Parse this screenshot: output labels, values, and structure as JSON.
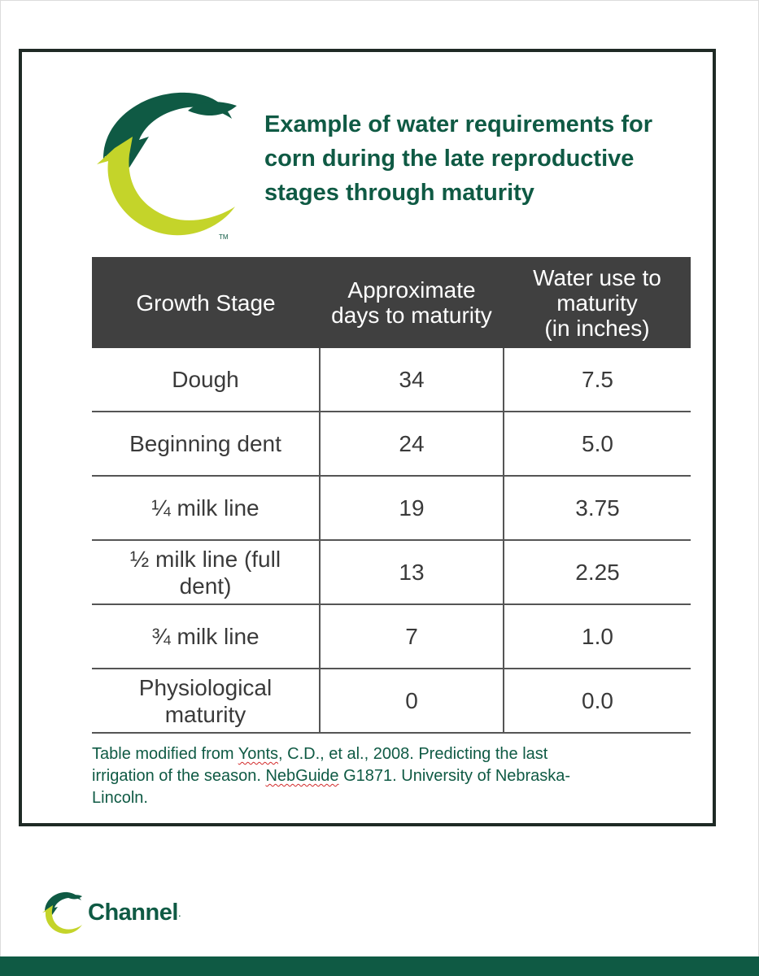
{
  "header": {
    "title_line1": "Example of water requirements for",
    "title_line2": "corn during the late reproductive",
    "title_line3": "stages through maturity"
  },
  "logo": {
    "icon": "channel-arrow-logo-icon",
    "tm": "TM",
    "colors": {
      "dark_green": "#0f5a44",
      "lime": "#c4d42a"
    }
  },
  "table": {
    "headers": [
      [
        "Growth Stage"
      ],
      [
        "Approximate",
        "days to maturity"
      ],
      [
        "Water use to",
        "maturity",
        "(in inches)"
      ]
    ],
    "rows": [
      {
        "stage": [
          "Dough"
        ],
        "days": "34",
        "water": "7.5"
      },
      {
        "stage": [
          "Beginning dent"
        ],
        "days": "24",
        "water": "5.0"
      },
      {
        "stage": [
          "¼ milk line"
        ],
        "days": "19",
        "water": "3.75"
      },
      {
        "stage": [
          "½ milk line (full",
          "dent)"
        ],
        "days": "13",
        "water": "2.25"
      },
      {
        "stage": [
          "¾ milk line"
        ],
        "days": "7",
        "water": "1.0"
      },
      {
        "stage": [
          "Physiological",
          "maturity"
        ],
        "days": "0",
        "water": "0.0"
      }
    ]
  },
  "footnote": {
    "part1": "Table modified from ",
    "author": "Yonts",
    "part2": ", C.D., et al., 2008. Predicting the last",
    "part3": "irrigation of the season. ",
    "guide": "NebGuide",
    "part4": " G1871. University of Nebraska-",
    "part5": "Lincoln."
  },
  "brand": {
    "name": "Channel",
    "dot": "."
  },
  "colors": {
    "accent": "#0f5a44",
    "header_bg": "#404040",
    "lime": "#c4d42a"
  }
}
